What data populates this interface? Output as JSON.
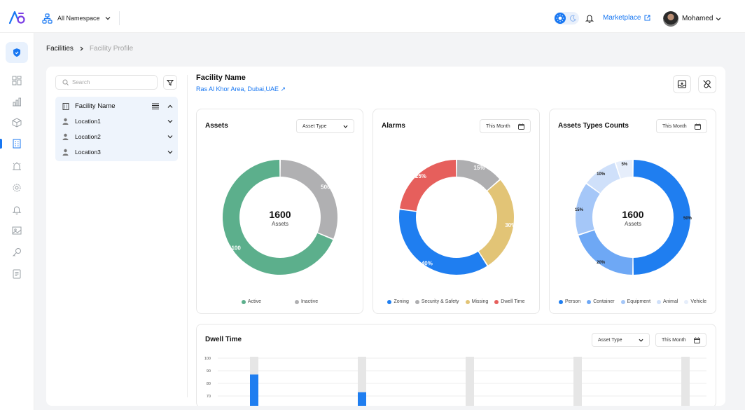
{
  "header": {
    "namespace_label": "All Namespace",
    "marketplace_label": "Marketplace",
    "user_name": "Mohamed"
  },
  "breadcrumb": {
    "root": "Facilities",
    "current": "Facility Profile"
  },
  "left_panel": {
    "search_placeholder": "Search",
    "tree_header": "Facility Name",
    "locations": [
      "Location1",
      "Location2",
      "Location3"
    ]
  },
  "facility": {
    "name": "Facility Name",
    "location": "Ras Al Khor Area, Dubai,UAE ↗"
  },
  "cards": {
    "assets": {
      "title": "Assets",
      "select": "Asset Type",
      "center_value": "1600",
      "center_label": "Assets"
    },
    "alarms": {
      "title": "Alarms",
      "select": "This Month"
    },
    "types": {
      "title": "Assets Types Counts",
      "select": "This Month",
      "center_value": "1600",
      "center_label": "Assets"
    }
  },
  "dwell": {
    "title": "Dwell Time",
    "select1": "Asset Type",
    "select2": "This Month"
  },
  "chart_data": [
    {
      "type": "pie",
      "title": "Assets",
      "categories": [
        "Active",
        "Inactive"
      ],
      "values": [
        1100,
        500
      ],
      "labels": [
        "1100",
        "500"
      ],
      "colors": [
        "#5caf8c",
        "#b0b0b2"
      ]
    },
    {
      "type": "pie",
      "title": "Alarms",
      "categories": [
        "Zoning",
        "Security & Safety",
        "Missing",
        "Dwell Time"
      ],
      "values": [
        40,
        15,
        30,
        25
      ],
      "labels": [
        "40%",
        "15%",
        "30%",
        "25%"
      ],
      "colors": [
        "#1f7ef0",
        "#aeaeb0",
        "#e2c476",
        "#e65f5c"
      ]
    },
    {
      "type": "pie",
      "title": "Assets Types Counts",
      "categories": [
        "Person",
        "Container",
        "Equipment",
        "Animal",
        "Vehicle"
      ],
      "values": [
        50,
        20,
        15,
        10,
        5
      ],
      "labels": [
        "50%",
        "20%",
        "15%",
        "10%",
        "5%"
      ],
      "colors": [
        "#1f7ef0",
        "#6ea8f5",
        "#a5c7f8",
        "#cfe0fa",
        "#e6eefb"
      ]
    },
    {
      "type": "bar",
      "title": "Dwell Time",
      "y_ticks": [
        "100",
        "90",
        "80",
        "70"
      ],
      "values": [
        87,
        73,
        null,
        null,
        null
      ],
      "ylim": [
        70,
        100
      ]
    }
  ]
}
